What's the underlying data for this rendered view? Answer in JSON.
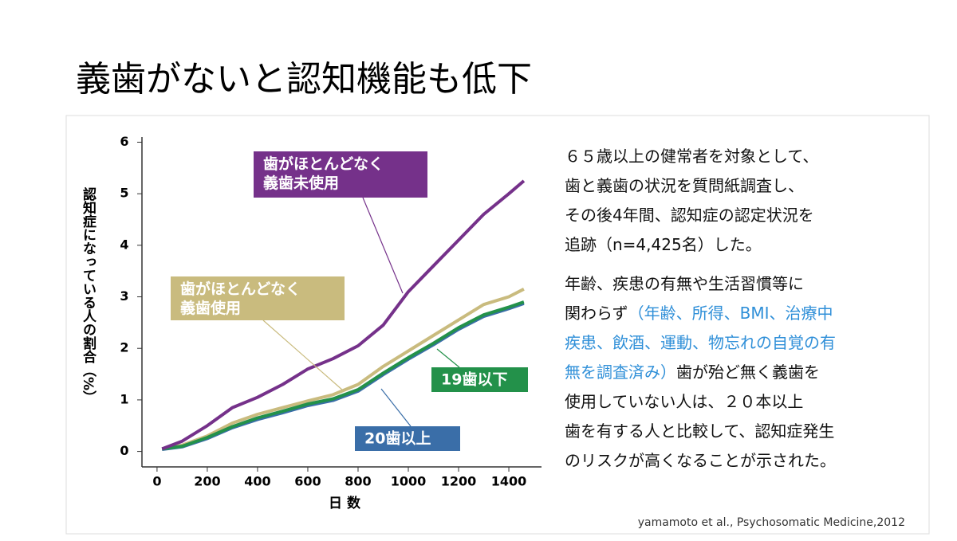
{
  "title": "義歯がないと認知機能も低下",
  "chart_data": {
    "type": "line",
    "x_label": "日 数",
    "y_label": "認知症になっている人の割合（%）",
    "xlim": [
      -60,
      1530
    ],
    "ylim": [
      -0.3,
      6.1
    ],
    "xticks": [
      0,
      200,
      400,
      600,
      800,
      1000,
      1200,
      1400
    ],
    "yticks": [
      0,
      1,
      2,
      3,
      4,
      5,
      6
    ],
    "x": [
      20,
      100,
      200,
      300,
      400,
      500,
      600,
      700,
      800,
      900,
      1000,
      1100,
      1200,
      1300,
      1400,
      1460
    ],
    "series": [
      {
        "name": "歯がほとんどなく\n義歯未使用",
        "color": "#75318a",
        "values": [
          0.05,
          0.2,
          0.5,
          0.85,
          1.05,
          1.3,
          1.6,
          1.8,
          2.05,
          2.45,
          3.1,
          3.6,
          4.1,
          4.6,
          5.0,
          5.25
        ]
      },
      {
        "name": "歯がほとんどなく\n義歯使用",
        "color": "#c9bb7e",
        "values": [
          0.05,
          0.12,
          0.3,
          0.55,
          0.72,
          0.85,
          0.98,
          1.1,
          1.3,
          1.65,
          1.95,
          2.25,
          2.55,
          2.85,
          3.0,
          3.15
        ]
      },
      {
        "name": "19歯以下",
        "color": "#23914a",
        "values": [
          0.05,
          0.1,
          0.27,
          0.48,
          0.65,
          0.78,
          0.92,
          1.02,
          1.2,
          1.52,
          1.82,
          2.1,
          2.4,
          2.65,
          2.8,
          2.9
        ]
      },
      {
        "name": "20歯以上",
        "color": "#3a6ea8",
        "values": [
          0.04,
          0.09,
          0.25,
          0.46,
          0.62,
          0.75,
          0.89,
          0.99,
          1.17,
          1.49,
          1.79,
          2.07,
          2.37,
          2.62,
          2.77,
          2.87
        ]
      }
    ]
  },
  "description": {
    "highlight_color": "#2f8fd8",
    "paragraph_1": [
      [
        {
          "text": "６５歳以上の健常者を対象として、"
        }
      ],
      [
        {
          "text": "歯と義歯の状況を質問紙調査し、"
        }
      ],
      [
        {
          "text": "その後4年間、認知症の認定状況を"
        }
      ],
      [
        {
          "text": "追跡（n=4,425名）した。"
        }
      ]
    ],
    "paragraph_2": [
      [
        {
          "text": "年齢、疾患の有無や生活習慣等に"
        }
      ],
      [
        {
          "text": "関わらず"
        },
        {
          "text": "（年齢、所得、BMI、治療中",
          "highlight": true
        }
      ],
      [
        {
          "text": "疾患、飲酒、運動、物忘れの自覚の有",
          "highlight": true
        }
      ],
      [
        {
          "text": "無を調査済み）",
          "highlight": true
        },
        {
          "text": "歯が殆ど無く義歯を"
        }
      ],
      [
        {
          "text": "使用していない人は、２０本以上"
        }
      ],
      [
        {
          "text": "歯を有する人と比較して、認知症発生"
        }
      ],
      [
        {
          "text": "のリスクが高くなることが示された。"
        }
      ]
    ]
  },
  "citation": "yamamoto et al., Psychosomatic Medicine,2012"
}
